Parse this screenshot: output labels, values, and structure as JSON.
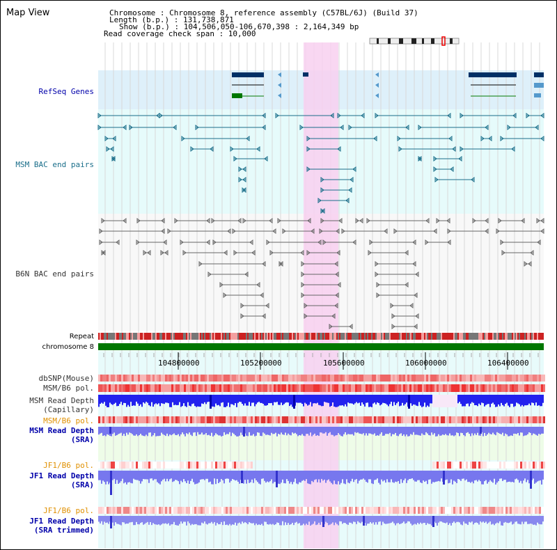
{
  "title": "Map View",
  "info": {
    "chromosome": "Chromosome      : Chromosome 8, reference assembly (C57BL/6J) (Build 37)",
    "length": "Length (b.p.) : 131,738,871",
    "show": "Show (b.p.) : 104,506,050-106,670,398 : 2,164,349 bp",
    "coverage": "Read coverage check span : 10,000"
  },
  "tracks": {
    "refseq": "RefSeq Genes",
    "msm_bac": "MSM BAC end pairs",
    "b6n_bac": "B6N BAC end pairs",
    "repeat": "Repeat",
    "chromosome": "chromosome 8",
    "dbsnp": "dbSNP(Mouse)",
    "msm_b6_pol_1": "MSM/B6 pol.",
    "msm_read_depth_cap_1": "MSM Read Depth",
    "msm_read_depth_cap_2": "(Capillary)",
    "msm_b6_pol_2": "MSM/B6 pol.",
    "msm_read_depth_sra_1": "MSM Read Depth",
    "msm_read_depth_sra_2": "(SRA)",
    "jf1_b6_pol_1": "JF1/B6 pol.",
    "jf1_read_depth_sra_1": "JF1 Read Depth",
    "jf1_read_depth_sra_2": "(SRA)",
    "jf1_b6_pol_2": "JF1/B6 pol.",
    "jf1_read_depth_trim_1": "JF1 Read Depth",
    "jf1_read_depth_trim_2": "(SRA trimmed)"
  },
  "axis": {
    "ticks": [
      "104800000",
      "105200000",
      "105600000",
      "106000000",
      "106400000"
    ]
  },
  "colors": {
    "refseq_bg": "#def0fa",
    "msm_bg": "#e6fbfb",
    "b6n_bg": "#f8f8f8",
    "highlight": "#f8d0f0",
    "gene_dark": "#003066",
    "gene_green": "#007700",
    "msm_pair": "#1a6e8a",
    "b6n_pair": "#666666",
    "chromosome": "#007700",
    "label_blue": "#0000aa",
    "label_orange": "#e09000",
    "label_teal": "#1a6e8a",
    "depth_blue": "#2222ee",
    "depth_light": "#7777ee"
  }
}
